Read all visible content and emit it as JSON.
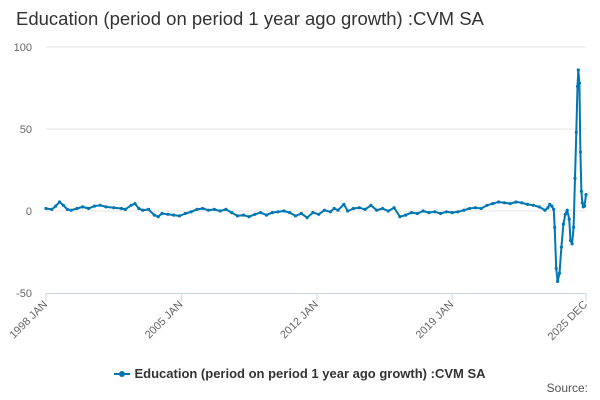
{
  "chart_data": {
    "type": "line",
    "title": "Education (period on period 1 year ago growth) :CVM SA",
    "xlabel": "",
    "ylabel": "",
    "x_range": [
      1998.0,
      2025.92
    ],
    "ylim": [
      -50,
      100
    ],
    "yticks": [
      -50,
      0,
      50,
      100
    ],
    "ytick_labels": [
      "-50",
      "0",
      "50",
      "100"
    ],
    "xticks": [
      1998.0,
      2005.0,
      2012.0,
      2019.0,
      2025.92
    ],
    "xtick_labels": [
      "1998 JAN",
      "2005 JAN",
      "2012 JAN",
      "2019 JAN",
      "2025 DEC"
    ],
    "grid": true,
    "legend_position": "bottom",
    "series": [
      {
        "name": "Education (period on period 1 year ago growth) :CVM SA",
        "color": "#0076B3",
        "points": [
          [
            1998.0,
            1.5
          ],
          [
            1998.3,
            1.0
          ],
          [
            1998.5,
            3.0
          ],
          [
            1998.7,
            5.5
          ],
          [
            1998.9,
            3.5
          ],
          [
            1999.1,
            1.0
          ],
          [
            1999.3,
            0.5
          ],
          [
            1999.6,
            1.5
          ],
          [
            1999.9,
            2.5
          ],
          [
            2000.2,
            1.5
          ],
          [
            2000.5,
            3.0
          ],
          [
            2000.8,
            3.5
          ],
          [
            2001.1,
            2.5
          ],
          [
            2001.5,
            2.0
          ],
          [
            2001.9,
            1.5
          ],
          [
            2002.1,
            1.0
          ],
          [
            2002.4,
            3.5
          ],
          [
            2002.6,
            4.5
          ],
          [
            2002.8,
            1.5
          ],
          [
            2003.0,
            0.5
          ],
          [
            2003.3,
            1.0
          ],
          [
            2003.6,
            -2.5
          ],
          [
            2003.8,
            -3.5
          ],
          [
            2004.0,
            -1.5
          ],
          [
            2004.3,
            -2.0
          ],
          [
            2004.6,
            -2.5
          ],
          [
            2004.9,
            -3.0
          ],
          [
            2005.2,
            -1.5
          ],
          [
            2005.5,
            -0.5
          ],
          [
            2005.8,
            1.0
          ],
          [
            2006.1,
            1.5
          ],
          [
            2006.4,
            0.5
          ],
          [
            2006.7,
            1.0
          ],
          [
            2007.0,
            0.0
          ],
          [
            2007.3,
            1.0
          ],
          [
            2007.6,
            -1.0
          ],
          [
            2007.9,
            -3.0
          ],
          [
            2008.2,
            -2.5
          ],
          [
            2008.5,
            -3.5
          ],
          [
            2008.8,
            -2.0
          ],
          [
            2009.1,
            -1.0
          ],
          [
            2009.4,
            -2.5
          ],
          [
            2009.7,
            -1.0
          ],
          [
            2010.0,
            -0.5
          ],
          [
            2010.3,
            0.0
          ],
          [
            2010.6,
            -1.0
          ],
          [
            2010.9,
            -3.0
          ],
          [
            2011.2,
            -1.5
          ],
          [
            2011.5,
            -4.0
          ],
          [
            2011.8,
            -1.0
          ],
          [
            2012.1,
            -2.0
          ],
          [
            2012.4,
            0.5
          ],
          [
            2012.7,
            -0.5
          ],
          [
            2012.9,
            1.5
          ],
          [
            2013.1,
            0.5
          ],
          [
            2013.4,
            4.0
          ],
          [
            2013.6,
            0.0
          ],
          [
            2013.9,
            1.5
          ],
          [
            2014.2,
            2.0
          ],
          [
            2014.5,
            1.0
          ],
          [
            2014.8,
            3.5
          ],
          [
            2015.1,
            0.5
          ],
          [
            2015.4,
            1.5
          ],
          [
            2015.7,
            0.0
          ],
          [
            2016.0,
            2.0
          ],
          [
            2016.3,
            -3.5
          ],
          [
            2016.6,
            -2.5
          ],
          [
            2016.9,
            -1.0
          ],
          [
            2017.2,
            -1.5
          ],
          [
            2017.5,
            0.0
          ],
          [
            2017.8,
            -1.0
          ],
          [
            2018.1,
            -0.5
          ],
          [
            2018.4,
            -1.5
          ],
          [
            2018.7,
            -0.5
          ],
          [
            2019.0,
            -1.0
          ],
          [
            2019.3,
            -0.5
          ],
          [
            2019.6,
            0.5
          ],
          [
            2019.9,
            1.5
          ],
          [
            2020.2,
            2.0
          ],
          [
            2020.5,
            1.5
          ],
          [
            2020.8,
            3.5
          ],
          [
            2021.1,
            4.5
          ],
          [
            2021.4,
            5.5
          ],
          [
            2021.7,
            5.0
          ],
          [
            2022.0,
            4.5
          ],
          [
            2022.3,
            5.5
          ],
          [
            2022.6,
            5.0
          ],
          [
            2022.9,
            4.0
          ],
          [
            2023.2,
            3.5
          ],
          [
            2023.5,
            2.5
          ],
          [
            2023.8,
            0.5
          ],
          [
            2023.95,
            2.0
          ],
          [
            2024.05,
            4.0
          ],
          [
            2024.15,
            3.0
          ],
          [
            2024.25,
            1.0
          ],
          [
            2024.3,
            -10.0
          ],
          [
            2024.38,
            -35.0
          ],
          [
            2024.45,
            -43.0
          ],
          [
            2024.55,
            -38.0
          ],
          [
            2024.65,
            -22.0
          ],
          [
            2024.75,
            -8.0
          ],
          [
            2024.85,
            -2.0
          ],
          [
            2024.95,
            0.5
          ],
          [
            2025.05,
            -5.0
          ],
          [
            2025.12,
            -18.0
          ],
          [
            2025.2,
            -20.0
          ],
          [
            2025.28,
            -10.0
          ],
          [
            2025.35,
            20.0
          ],
          [
            2025.42,
            48.0
          ],
          [
            2025.48,
            76.0
          ],
          [
            2025.52,
            86.0
          ],
          [
            2025.58,
            78.0
          ],
          [
            2025.63,
            36.0
          ],
          [
            2025.68,
            12.0
          ],
          [
            2025.73,
            5.0
          ],
          [
            2025.78,
            2.5
          ],
          [
            2025.84,
            3.0
          ],
          [
            2025.92,
            10.0
          ]
        ]
      }
    ]
  },
  "legend": {
    "label": "Education (period on period 1 year ago growth) :CVM SA"
  },
  "footer": {
    "source_label": "Source:"
  }
}
